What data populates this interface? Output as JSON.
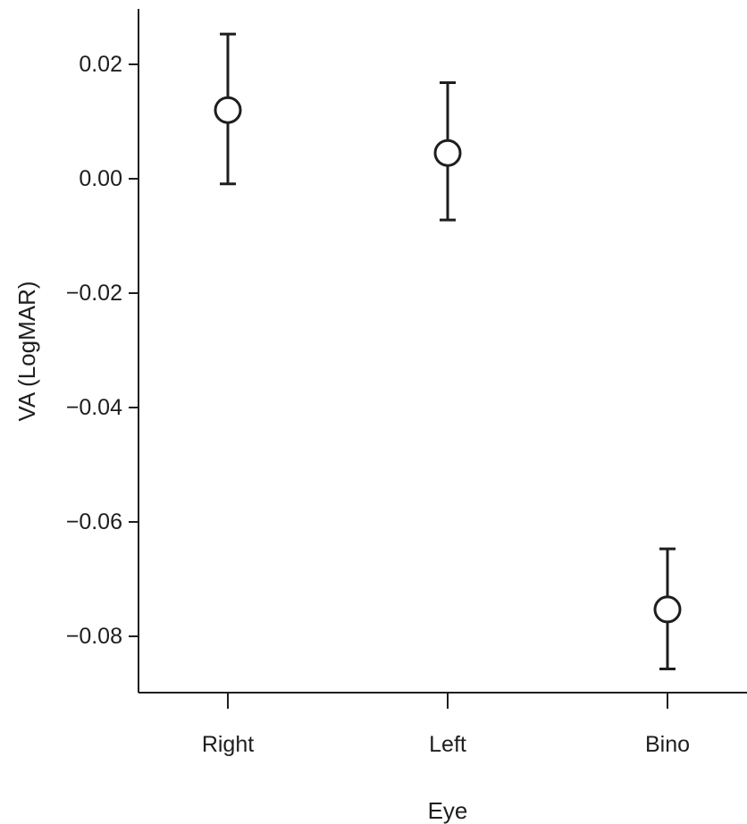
{
  "chart_data": {
    "type": "scatter",
    "title": "",
    "xlabel": "Eye",
    "ylabel": "VA (LogMAR)",
    "categories": [
      "Right",
      "Left",
      "Bino"
    ],
    "series": [
      {
        "values": [
          0.012,
          0.0045,
          -0.0753
        ],
        "error_lower": [
          -0.0009,
          -0.0072,
          -0.0857
        ],
        "error_upper": [
          0.0253,
          0.0168,
          -0.0647
        ]
      }
    ],
    "yticks": [
      0.02,
      0.0,
      -0.02,
      -0.04,
      -0.06,
      -0.08
    ],
    "ytick_labels": [
      "0.02",
      "0.00",
      "−0.02",
      "−0.04",
      "−0.06",
      "−0.08"
    ],
    "ylim": [
      -0.0901,
      0.0295
    ],
    "grid": false,
    "legend": "none",
    "marker": "open-circle",
    "colors": {
      "axis": "#1e1e1e",
      "marker_fill": "#ffffff",
      "marker_stroke": "#1e1e1e"
    }
  }
}
